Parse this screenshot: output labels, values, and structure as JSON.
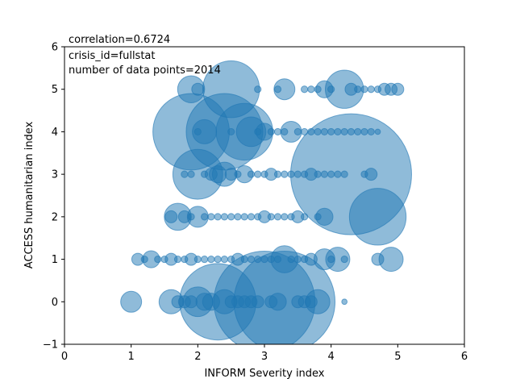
{
  "chart_data": {
    "type": "scatter",
    "annotations": [
      "correlation=0.6724",
      "crisis_id=fullstat",
      "number of data points=2014"
    ],
    "xlabel": "INFORM Severity index",
    "ylabel": "ACCESS humanitarian index",
    "xlim": [
      0,
      6
    ],
    "ylim": [
      -1,
      6
    ],
    "xticks": [
      "0",
      "1",
      "2",
      "3",
      "4",
      "5",
      "6"
    ],
    "yticks": [
      "−1",
      "0",
      "1",
      "2",
      "3",
      "4",
      "5",
      "6"
    ],
    "grid": false,
    "marker_color": "#1f77b4",
    "marker_alpha": 0.5,
    "point_note": "size = relative bubble size (count of observations)",
    "points": [
      {
        "x": 1.0,
        "y": 0,
        "size": 3
      },
      {
        "x": 1.6,
        "y": 0,
        "size": 4
      },
      {
        "x": 1.7,
        "y": 0,
        "size": 1
      },
      {
        "x": 1.8,
        "y": 0,
        "size": 1
      },
      {
        "x": 1.9,
        "y": 0,
        "size": 1
      },
      {
        "x": 2.0,
        "y": 0,
        "size": 6
      },
      {
        "x": 2.1,
        "y": 0,
        "size": 2
      },
      {
        "x": 2.2,
        "y": 0,
        "size": 2
      },
      {
        "x": 2.3,
        "y": 0,
        "size": 40
      },
      {
        "x": 2.4,
        "y": 0,
        "size": 4
      },
      {
        "x": 2.5,
        "y": 0,
        "size": 1
      },
      {
        "x": 2.6,
        "y": 0,
        "size": 1
      },
      {
        "x": 2.7,
        "y": 0,
        "size": 1
      },
      {
        "x": 2.8,
        "y": 0,
        "size": 1
      },
      {
        "x": 2.9,
        "y": 0,
        "size": 1
      },
      {
        "x": 3.0,
        "y": 0,
        "size": 70
      },
      {
        "x": 3.1,
        "y": 0,
        "size": 1
      },
      {
        "x": 3.2,
        "y": 0,
        "size": 2
      },
      {
        "x": 3.3,
        "y": 0,
        "size": 70
      },
      {
        "x": 3.5,
        "y": 0,
        "size": 1
      },
      {
        "x": 3.6,
        "y": 0,
        "size": 1
      },
      {
        "x": 3.7,
        "y": 0,
        "size": 1
      },
      {
        "x": 3.8,
        "y": 0,
        "size": 4
      },
      {
        "x": 4.2,
        "y": 0,
        "size": 0.2
      },
      {
        "x": 1.1,
        "y": 1,
        "size": 1
      },
      {
        "x": 1.2,
        "y": 1,
        "size": 0.3
      },
      {
        "x": 1.3,
        "y": 1,
        "size": 2
      },
      {
        "x": 1.4,
        "y": 1,
        "size": 0.3
      },
      {
        "x": 1.5,
        "y": 1,
        "size": 0.3
      },
      {
        "x": 1.6,
        "y": 1,
        "size": 1
      },
      {
        "x": 1.7,
        "y": 1,
        "size": 0.3
      },
      {
        "x": 1.8,
        "y": 1,
        "size": 0.3
      },
      {
        "x": 1.9,
        "y": 1,
        "size": 1
      },
      {
        "x": 2.0,
        "y": 1,
        "size": 0.3
      },
      {
        "x": 2.1,
        "y": 1,
        "size": 0.3
      },
      {
        "x": 2.2,
        "y": 1,
        "size": 0.3
      },
      {
        "x": 2.3,
        "y": 1,
        "size": 0.3
      },
      {
        "x": 2.4,
        "y": 1,
        "size": 0.3
      },
      {
        "x": 2.5,
        "y": 1,
        "size": 0.3
      },
      {
        "x": 2.6,
        "y": 1,
        "size": 1
      },
      {
        "x": 2.7,
        "y": 1,
        "size": 0.3
      },
      {
        "x": 2.8,
        "y": 1,
        "size": 0.3
      },
      {
        "x": 2.9,
        "y": 1,
        "size": 0.3
      },
      {
        "x": 3.0,
        "y": 1,
        "size": 0.3
      },
      {
        "x": 3.1,
        "y": 1,
        "size": 0.3
      },
      {
        "x": 3.2,
        "y": 1,
        "size": 0.3
      },
      {
        "x": 3.3,
        "y": 1,
        "size": 5
      },
      {
        "x": 3.4,
        "y": 1,
        "size": 0.3
      },
      {
        "x": 3.5,
        "y": 1,
        "size": 0.3
      },
      {
        "x": 3.6,
        "y": 1,
        "size": 0.3
      },
      {
        "x": 3.7,
        "y": 1,
        "size": 1
      },
      {
        "x": 3.9,
        "y": 1,
        "size": 3
      },
      {
        "x": 4.0,
        "y": 1,
        "size": 0.3
      },
      {
        "x": 4.1,
        "y": 1,
        "size": 4
      },
      {
        "x": 4.2,
        "y": 1,
        "size": 0.3
      },
      {
        "x": 4.7,
        "y": 1,
        "size": 1
      },
      {
        "x": 4.9,
        "y": 1,
        "size": 4
      },
      {
        "x": 1.6,
        "y": 2,
        "size": 1
      },
      {
        "x": 1.7,
        "y": 2,
        "size": 5
      },
      {
        "x": 1.8,
        "y": 2,
        "size": 1
      },
      {
        "x": 1.9,
        "y": 2,
        "size": 0.3
      },
      {
        "x": 2.0,
        "y": 2,
        "size": 3
      },
      {
        "x": 2.1,
        "y": 2,
        "size": 0.3
      },
      {
        "x": 2.2,
        "y": 2,
        "size": 0.3
      },
      {
        "x": 2.3,
        "y": 2,
        "size": 0.3
      },
      {
        "x": 2.4,
        "y": 2,
        "size": 0.3
      },
      {
        "x": 2.5,
        "y": 2,
        "size": 0.3
      },
      {
        "x": 2.6,
        "y": 2,
        "size": 0.3
      },
      {
        "x": 2.7,
        "y": 2,
        "size": 0.3
      },
      {
        "x": 2.8,
        "y": 2,
        "size": 0.3
      },
      {
        "x": 2.9,
        "y": 2,
        "size": 0.3
      },
      {
        "x": 3.0,
        "y": 2,
        "size": 1
      },
      {
        "x": 3.1,
        "y": 2,
        "size": 0.3
      },
      {
        "x": 3.2,
        "y": 2,
        "size": 0.3
      },
      {
        "x": 3.3,
        "y": 2,
        "size": 0.3
      },
      {
        "x": 3.4,
        "y": 2,
        "size": 0.3
      },
      {
        "x": 3.5,
        "y": 2,
        "size": 1
      },
      {
        "x": 3.6,
        "y": 2,
        "size": 0.3
      },
      {
        "x": 3.8,
        "y": 2,
        "size": 0.3
      },
      {
        "x": 3.9,
        "y": 2,
        "size": 2
      },
      {
        "x": 4.7,
        "y": 2,
        "size": 22
      },
      {
        "x": 1.8,
        "y": 3,
        "size": 0.3
      },
      {
        "x": 1.9,
        "y": 3,
        "size": 0.3
      },
      {
        "x": 2.0,
        "y": 3,
        "size": 17
      },
      {
        "x": 2.1,
        "y": 3,
        "size": 0.3
      },
      {
        "x": 2.2,
        "y": 3,
        "size": 1
      },
      {
        "x": 2.3,
        "y": 3,
        "size": 2
      },
      {
        "x": 2.4,
        "y": 3,
        "size": 4
      },
      {
        "x": 2.5,
        "y": 3,
        "size": 1
      },
      {
        "x": 2.6,
        "y": 3,
        "size": 0.3
      },
      {
        "x": 2.7,
        "y": 3,
        "size": 2
      },
      {
        "x": 2.8,
        "y": 3,
        "size": 0.3
      },
      {
        "x": 2.9,
        "y": 3,
        "size": 0.3
      },
      {
        "x": 3.0,
        "y": 3,
        "size": 0.3
      },
      {
        "x": 3.1,
        "y": 3,
        "size": 1
      },
      {
        "x": 3.2,
        "y": 3,
        "size": 0.3
      },
      {
        "x": 3.3,
        "y": 3,
        "size": 0.3
      },
      {
        "x": 3.4,
        "y": 3,
        "size": 0.3
      },
      {
        "x": 3.5,
        "y": 3,
        "size": 0.3
      },
      {
        "x": 3.6,
        "y": 3,
        "size": 0.3
      },
      {
        "x": 3.7,
        "y": 3,
        "size": 1
      },
      {
        "x": 3.8,
        "y": 3,
        "size": 0.3
      },
      {
        "x": 3.9,
        "y": 3,
        "size": 0.3
      },
      {
        "x": 4.0,
        "y": 3,
        "size": 0.3
      },
      {
        "x": 4.1,
        "y": 3,
        "size": 0.3
      },
      {
        "x": 4.2,
        "y": 3,
        "size": 0.3
      },
      {
        "x": 4.3,
        "y": 3,
        "size": 100
      },
      {
        "x": 4.5,
        "y": 3,
        "size": 0.3
      },
      {
        "x": 4.6,
        "y": 3,
        "size": 1
      },
      {
        "x": 1.9,
        "y": 4,
        "size": 40
      },
      {
        "x": 2.0,
        "y": 4,
        "size": 0.3
      },
      {
        "x": 2.1,
        "y": 4,
        "size": 4
      },
      {
        "x": 2.4,
        "y": 4,
        "size": 40
      },
      {
        "x": 2.5,
        "y": 4,
        "size": 0.3
      },
      {
        "x": 2.7,
        "y": 4,
        "size": 22
      },
      {
        "x": 2.8,
        "y": 4,
        "size": 6
      },
      {
        "x": 2.9,
        "y": 4,
        "size": 0.3
      },
      {
        "x": 3.0,
        "y": 4,
        "size": 2
      },
      {
        "x": 3.1,
        "y": 4,
        "size": 0.3
      },
      {
        "x": 3.2,
        "y": 4,
        "size": 0.3
      },
      {
        "x": 3.3,
        "y": 4,
        "size": 0.3
      },
      {
        "x": 3.4,
        "y": 4,
        "size": 3
      },
      {
        "x": 3.5,
        "y": 4,
        "size": 0.3
      },
      {
        "x": 3.6,
        "y": 4,
        "size": 0.3
      },
      {
        "x": 3.7,
        "y": 4,
        "size": 0.3
      },
      {
        "x": 3.8,
        "y": 4,
        "size": 0.3
      },
      {
        "x": 3.9,
        "y": 4,
        "size": 0.3
      },
      {
        "x": 4.0,
        "y": 4,
        "size": 0.3
      },
      {
        "x": 4.1,
        "y": 4,
        "size": 0.3
      },
      {
        "x": 4.2,
        "y": 4,
        "size": 0.3
      },
      {
        "x": 4.3,
        "y": 4,
        "size": 0.3
      },
      {
        "x": 4.4,
        "y": 4,
        "size": 0.3
      },
      {
        "x": 4.5,
        "y": 4,
        "size": 0.3
      },
      {
        "x": 4.6,
        "y": 4,
        "size": 0.3
      },
      {
        "x": 4.7,
        "y": 4,
        "size": 0.2
      },
      {
        "x": 1.9,
        "y": 5,
        "size": 5
      },
      {
        "x": 2.0,
        "y": 5,
        "size": 1
      },
      {
        "x": 2.5,
        "y": 5,
        "size": 22
      },
      {
        "x": 2.9,
        "y": 5,
        "size": 0.3
      },
      {
        "x": 3.2,
        "y": 5,
        "size": 0.3
      },
      {
        "x": 3.3,
        "y": 5,
        "size": 3
      },
      {
        "x": 3.6,
        "y": 5,
        "size": 0.3
      },
      {
        "x": 3.7,
        "y": 5,
        "size": 0.3
      },
      {
        "x": 3.8,
        "y": 5,
        "size": 0.3
      },
      {
        "x": 3.9,
        "y": 5,
        "size": 2
      },
      {
        "x": 4.0,
        "y": 5,
        "size": 0.3
      },
      {
        "x": 4.2,
        "y": 5,
        "size": 10
      },
      {
        "x": 4.3,
        "y": 5,
        "size": 1
      },
      {
        "x": 4.4,
        "y": 5,
        "size": 0.3
      },
      {
        "x": 4.5,
        "y": 5,
        "size": 0.3
      },
      {
        "x": 4.6,
        "y": 5,
        "size": 0.3
      },
      {
        "x": 4.7,
        "y": 5,
        "size": 0.3
      },
      {
        "x": 4.8,
        "y": 5,
        "size": 1
      },
      {
        "x": 4.9,
        "y": 5,
        "size": 1
      },
      {
        "x": 5.0,
        "y": 5,
        "size": 1
      }
    ]
  }
}
